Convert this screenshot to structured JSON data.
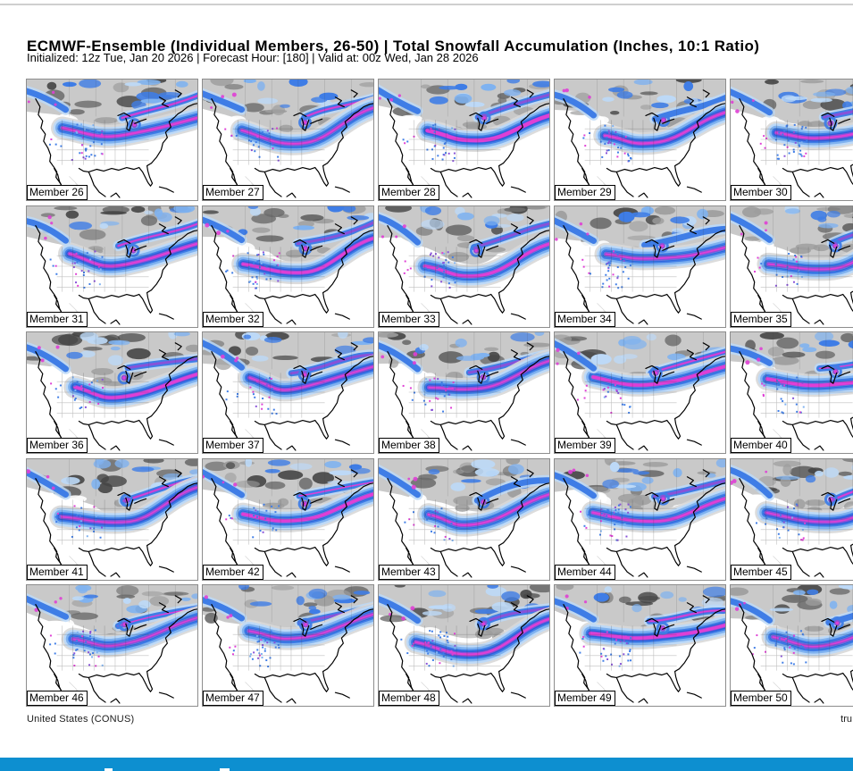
{
  "header": {
    "title": "ECMWF-Ensemble (Individual Members, 26-50) | Total Snowfall Accumulation (Inches, 10:1 Ratio)",
    "subtitle": "Initialized: 12z Tue, Jan 20 2026 | Forecast Hour: [180] | Valid at: 00z Wed, Jan 28 2026"
  },
  "grid": {
    "rows": 5,
    "cols": 5,
    "members": [
      {
        "label": "Member 26"
      },
      {
        "label": "Member 27"
      },
      {
        "label": "Member 28"
      },
      {
        "label": "Member 29"
      },
      {
        "label": "Member 30"
      },
      {
        "label": "Member 31"
      },
      {
        "label": "Member 32"
      },
      {
        "label": "Member 33"
      },
      {
        "label": "Member 34"
      },
      {
        "label": "Member 35"
      },
      {
        "label": "Member 36"
      },
      {
        "label": "Member 37"
      },
      {
        "label": "Member 38"
      },
      {
        "label": "Member 39"
      },
      {
        "label": "Member 40"
      },
      {
        "label": "Member 41"
      },
      {
        "label": "Member 42"
      },
      {
        "label": "Member 43"
      },
      {
        "label": "Member 44"
      },
      {
        "label": "Member 45"
      },
      {
        "label": "Member 46"
      },
      {
        "label": "Member 47"
      },
      {
        "label": "Member 48"
      },
      {
        "label": "Member 49"
      },
      {
        "label": "Member 50"
      }
    ]
  },
  "footer": {
    "region_label": "United States (CONUS)",
    "credit_label": "tru"
  },
  "colors": {
    "bottom_bar": "#0d8fd0",
    "top_rule": "#cfcfcf",
    "tile_border": "#8d8d8d",
    "coast_black": "#000000",
    "land_gray_light": "#c9c9c9",
    "land_gray_mid": "#9c9c9c",
    "land_gray_dark": "#6b6b6b",
    "land_gray_darker": "#454545",
    "snow_fringe_gray": "#d8d8d8",
    "snow_blue_pale": "#bdd9f7",
    "snow_blue_light": "#7fb2f0",
    "snow_blue_mid": "#3f7de6",
    "snow_blue_deep": "#2a5cd8",
    "snow_cyan": "#54c8e8",
    "snow_purple": "#8852d8",
    "snow_lavender": "#b48ae8",
    "snow_magenta": "#df3fd5"
  }
}
